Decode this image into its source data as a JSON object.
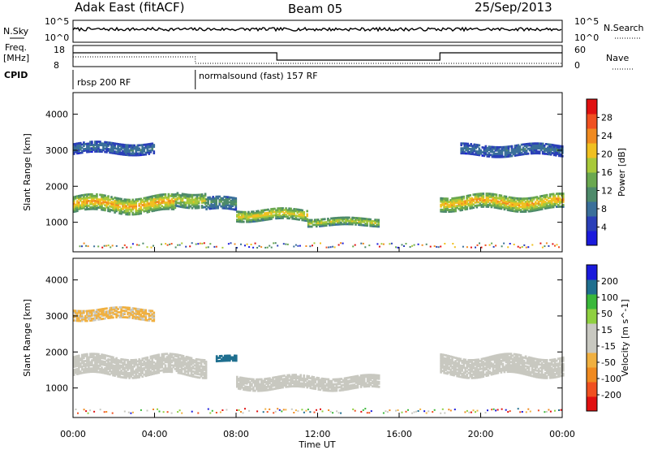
{
  "header": {
    "title": "Adak East (fitACF)",
    "beam": "Beam 05",
    "date": "25/Sep/2013"
  },
  "top_panels": {
    "nsky_label": "N.Sky",
    "nsearch_label": "N.Search",
    "count_ticks": [
      "10^5",
      "10^0"
    ],
    "freq_label_1": "Freq.",
    "freq_label_2": "[MHz]",
    "freq_ticks": [
      "18",
      "8"
    ],
    "nave_label": "Nave",
    "nave_ticks": [
      "60",
      "0"
    ],
    "cpid_label": "CPID",
    "cpid_modes": [
      {
        "name": "rbsp 200 RF",
        "start_hour": 0
      },
      {
        "name": "normalsound (fast) 157 RF",
        "start_hour": 6
      }
    ]
  },
  "colors": {
    "power": [
      "#1a1adc",
      "#2a3fb8",
      "#3a6f9a",
      "#4d8a6a",
      "#6aa84f",
      "#a8c93a",
      "#f0c020",
      "#f08a20",
      "#f05020",
      "#e01010"
    ],
    "velocity": [
      "#e01010",
      "#f05020",
      "#f08a20",
      "#f0b040",
      "#c8c8c0",
      "#c8c8c0",
      "#8fd040",
      "#3ab83a",
      "#1f6f8f",
      "#1a1adc"
    ]
  },
  "chart_data": [
    {
      "type": "heatmap",
      "name": "power",
      "ylabel": "Slant Range [km]",
      "ylim": [
        180,
        4600
      ],
      "y_ticks": [
        "4000",
        "3000",
        "2000",
        "1000"
      ],
      "colorbar_label": "Power [dB]",
      "colorbar_ticks": [
        "28",
        "24",
        "20",
        "16",
        "12",
        "8",
        "4"
      ],
      "clim": [
        0,
        32
      ],
      "xlim": [
        0,
        24
      ],
      "x_tick_labels": [
        "00:00",
        "04:00",
        "08:00",
        "12:00",
        "16:00",
        "20:00",
        "00:00"
      ],
      "features": [
        {
          "t0": 0.0,
          "t1": 5.0,
          "r_center": 1500,
          "r_halfwidth": 220,
          "power": 24
        },
        {
          "t0": 5.0,
          "t1": 6.5,
          "r_center": 1650,
          "r_halfwidth": 200,
          "power": 20
        },
        {
          "t0": 6.5,
          "t1": 8.0,
          "r_center": 1500,
          "r_halfwidth": 180,
          "power": 12
        },
        {
          "t0": 8.0,
          "t1": 11.5,
          "r_center": 1200,
          "r_halfwidth": 150,
          "power": 22
        },
        {
          "t0": 11.5,
          "t1": 15.0,
          "r_center": 1000,
          "r_halfwidth": 100,
          "power": 20
        },
        {
          "t0": 18.0,
          "t1": 24.0,
          "r_center": 1550,
          "r_halfwidth": 200,
          "power": 24
        },
        {
          "t0": 0.0,
          "t1": 4.0,
          "r_center": 3050,
          "r_halfwidth": 150,
          "power": 8
        },
        {
          "t0": 19.0,
          "t1": 24.0,
          "r_center": 3000,
          "r_halfwidth": 150,
          "power": 8
        }
      ]
    },
    {
      "type": "heatmap",
      "name": "velocity",
      "ylabel": "Slant Range [km]",
      "ylim": [
        180,
        4600
      ],
      "y_ticks": [
        "4000",
        "3000",
        "2000",
        "1000"
      ],
      "colorbar_label": "Velocity [m s^-1]",
      "colorbar_ticks": [
        "200",
        "100",
        "50",
        "15",
        "-15",
        "-50",
        "-100",
        "-200"
      ],
      "xlim": [
        0,
        24
      ],
      "x_tick_labels": [
        "00:00",
        "04:00",
        "08:00",
        "12:00",
        "16:00",
        "20:00",
        "00:00"
      ],
      "xlabel": "Time UT",
      "features": [
        {
          "t0": 0.0,
          "t1": 6.5,
          "r_center": 1600,
          "r_halfwidth": 250,
          "velocity": 0
        },
        {
          "t0": 7.0,
          "t1": 8.0,
          "r_center": 1800,
          "r_halfwidth": 80,
          "velocity": 200
        },
        {
          "t0": 8.0,
          "t1": 15.0,
          "r_center": 1150,
          "r_halfwidth": 180,
          "velocity": 40
        },
        {
          "t0": 18.0,
          "t1": 24.0,
          "r_center": 1600,
          "r_halfwidth": 250,
          "velocity": 0
        },
        {
          "t0": 0.0,
          "t1": 4.0,
          "r_center": 3050,
          "r_halfwidth": 150,
          "velocity": -60
        }
      ]
    }
  ]
}
